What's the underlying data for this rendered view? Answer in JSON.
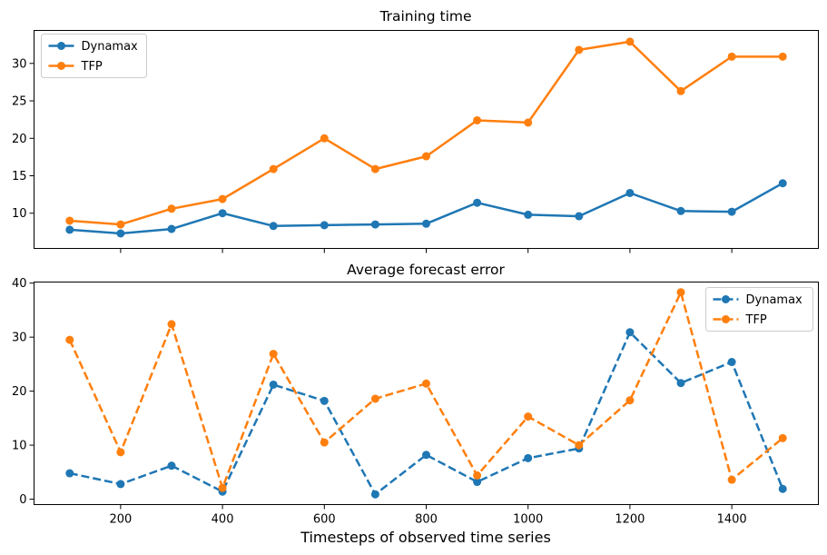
{
  "chart_data": [
    {
      "type": "line",
      "title": "Training time",
      "x": [
        100,
        200,
        300,
        400,
        500,
        600,
        700,
        800,
        900,
        1000,
        1100,
        1200,
        1300,
        1400,
        1500
      ],
      "xlim": [
        30,
        1570
      ],
      "ylim": [
        5.3,
        34.4
      ],
      "yticks": [
        10,
        15,
        20,
        25,
        30
      ],
      "xticks": [
        200,
        400,
        600,
        800,
        1000,
        1200,
        1400
      ],
      "show_xtick_labels": false,
      "linestyle": "solid",
      "legend": "top-left",
      "series": [
        {
          "name": "Dynamax",
          "color": "#1f77b4",
          "values": [
            7.8,
            7.3,
            7.9,
            10.0,
            8.3,
            8.4,
            8.5,
            8.6,
            11.4,
            9.8,
            9.6,
            12.7,
            10.3,
            10.2,
            14.0
          ]
        },
        {
          "name": "TFP",
          "color": "#ff7f0e",
          "values": [
            9.0,
            8.5,
            10.6,
            11.9,
            15.9,
            20.0,
            15.9,
            17.6,
            22.4,
            22.1,
            31.8,
            32.9,
            26.3,
            30.9,
            30.9
          ]
        }
      ]
    },
    {
      "type": "line",
      "title": "Average forecast error",
      "xlabel": "Timesteps of observed time series",
      "x": [
        100,
        200,
        300,
        400,
        500,
        600,
        700,
        800,
        900,
        1000,
        1100,
        1200,
        1300,
        1400,
        1500
      ],
      "xlim": [
        30,
        1570
      ],
      "ylim": [
        -1.0,
        40.2
      ],
      "yticks": [
        0,
        10,
        20,
        30,
        40
      ],
      "xticks": [
        200,
        400,
        600,
        800,
        1000,
        1200,
        1400
      ],
      "show_xtick_labels": true,
      "linestyle": "dashed",
      "legend": "top-right",
      "series": [
        {
          "name": "Dynamax",
          "color": "#1f77b4",
          "values": [
            4.8,
            2.8,
            6.2,
            1.4,
            21.2,
            18.2,
            0.9,
            8.2,
            3.2,
            7.6,
            9.4,
            30.9,
            21.5,
            25.4,
            1.9
          ]
        },
        {
          "name": "TFP",
          "color": "#ff7f0e",
          "values": [
            29.5,
            8.7,
            32.4,
            2.1,
            26.9,
            10.5,
            18.6,
            21.4,
            4.4,
            15.3,
            10.0,
            18.3,
            38.3,
            3.6,
            11.3
          ]
        }
      ]
    }
  ]
}
